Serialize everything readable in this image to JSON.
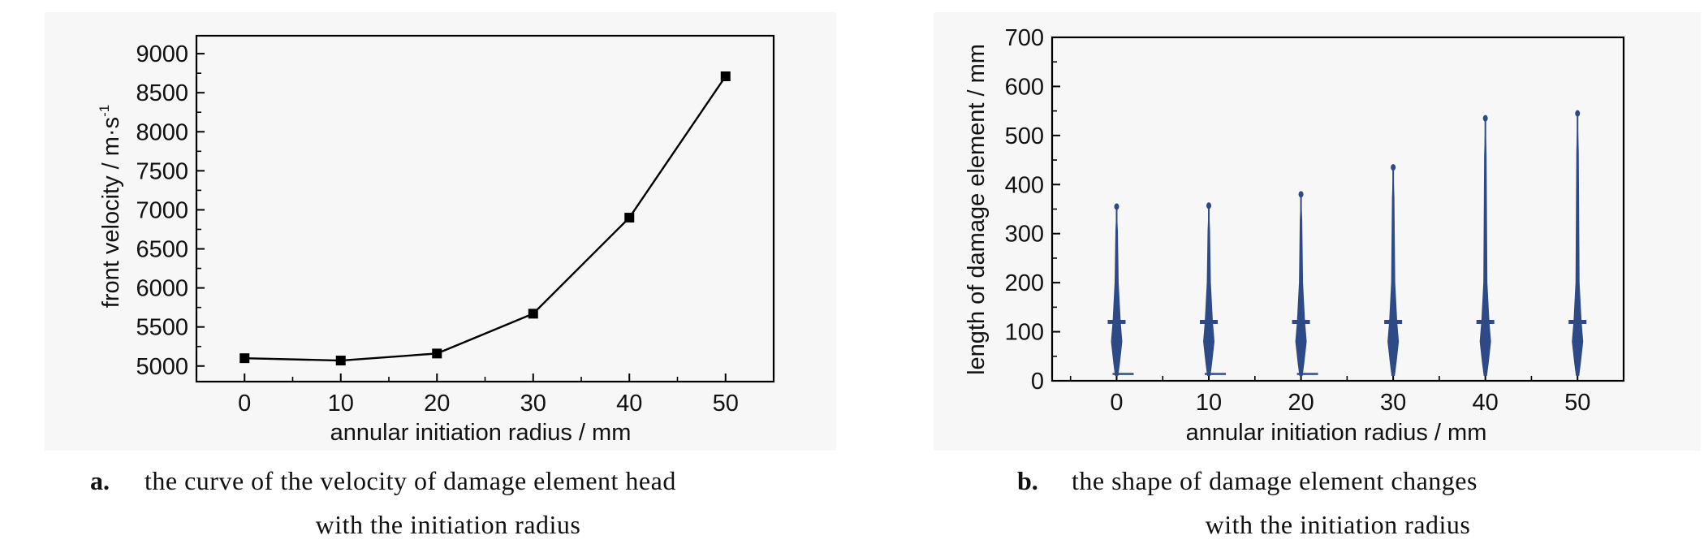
{
  "chart_data": [
    {
      "type": "line",
      "caption_letter": "a.",
      "caption_line1": "the curve of the velocity of damage element head",
      "caption_line2": "with the initiation radius",
      "xlabel": "annular initiation radius / mm",
      "ylabel": "front velocity / m·s",
      "ylabel_sup": "-1",
      "x": [
        0,
        10,
        20,
        30,
        40,
        50
      ],
      "x_ticks": [
        "0",
        "10",
        "20",
        "30",
        "40",
        "50"
      ],
      "xlim": [
        -5,
        55
      ],
      "y_ticks": [
        "5000",
        "5500",
        "6000",
        "6500",
        "7000",
        "7500",
        "8000",
        "8500",
        "9000"
      ],
      "ylim": [
        4800,
        9230
      ],
      "series": [
        {
          "values": [
            5100,
            5070,
            5160,
            5670,
            6900,
            8710
          ],
          "color": "#000000",
          "marker": "square"
        }
      ],
      "grid": false
    },
    {
      "type": "other",
      "caption_letter": "b.",
      "caption_line1": "the shape of damage element changes",
      "caption_line2": "with the initiation radius",
      "xlabel": "annular initiation radius / mm",
      "ylabel": "length of damage element / mm",
      "x": [
        0,
        10,
        20,
        30,
        40,
        50
      ],
      "x_ticks": [
        "0",
        "10",
        "20",
        "30",
        "40",
        "50"
      ],
      "xlim": [
        -7,
        55
      ],
      "y_ticks": [
        "0",
        "100",
        "200",
        "300",
        "400",
        "500",
        "600",
        "700"
      ],
      "ylim": [
        0,
        700
      ],
      "element_tip_length": [
        360,
        362,
        385,
        440,
        540,
        550
      ],
      "element_color": "#2e4a86",
      "grid": false
    }
  ]
}
